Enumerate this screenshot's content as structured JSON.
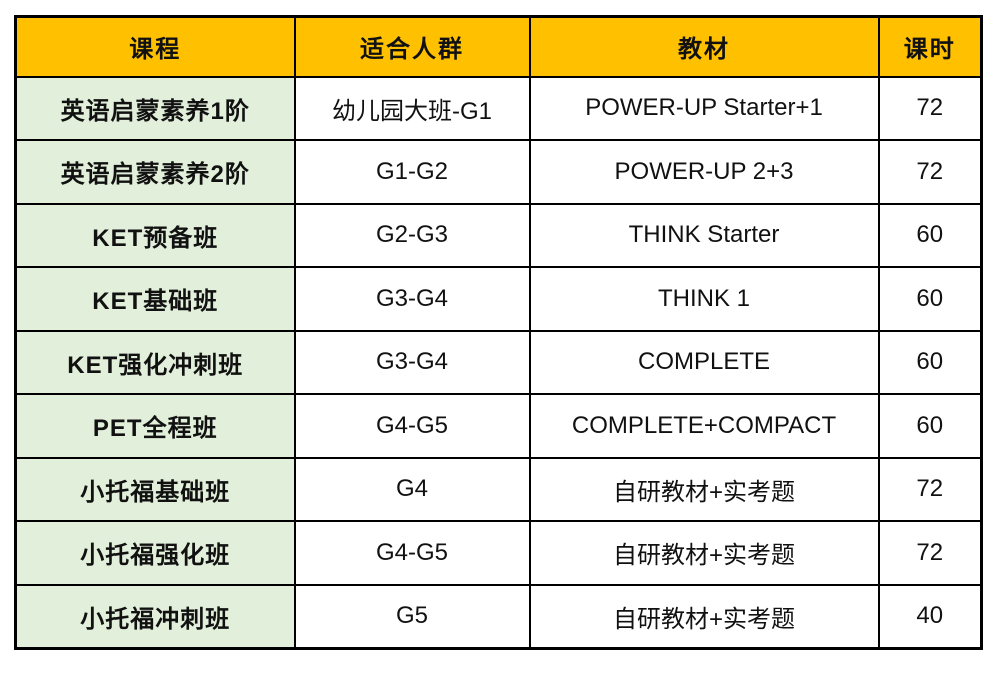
{
  "chart_data": {
    "type": "table",
    "title": "",
    "columns": [
      "课程",
      "适合人群",
      "教材",
      "课时"
    ],
    "rows": [
      [
        "英语启蒙素养1阶",
        "幼儿园大班-G1",
        "POWER-UP Starter+1",
        72
      ],
      [
        "英语启蒙素养2阶",
        "G1-G2",
        "POWER-UP 2+3",
        72
      ],
      [
        "KET预备班",
        "G2-G3",
        "THINK Starter",
        60
      ],
      [
        "KET基础班",
        "G3-G4",
        "THINK 1",
        60
      ],
      [
        "KET强化冲刺班",
        "G3-G4",
        "COMPLETE",
        60
      ],
      [
        "PET全程班",
        "G4-G5",
        "COMPLETE+COMPACT",
        60
      ],
      [
        "小托福基础班",
        "G4",
        "自研教材+实考题",
        72
      ],
      [
        "小托福强化班",
        "G4-G5",
        "自研教材+实考题",
        72
      ],
      [
        "小托福冲刺班",
        "G5",
        "自研教材+实考题",
        40
      ]
    ]
  },
  "table": {
    "headers": {
      "course": "课程",
      "audience": "适合人群",
      "textbook": "教材",
      "hours": "课时"
    },
    "rows": [
      {
        "course": "英语启蒙素养1阶",
        "audience": "幼儿园大班-G1",
        "textbook": "POWER-UP Starter+1",
        "hours": "72"
      },
      {
        "course": "英语启蒙素养2阶",
        "audience": "G1-G2",
        "textbook": "POWER-UP 2+3",
        "hours": "72"
      },
      {
        "course": "KET预备班",
        "audience": "G2-G3",
        "textbook": "THINK Starter",
        "hours": "60"
      },
      {
        "course": "KET基础班",
        "audience": "G3-G4",
        "textbook": "THINK 1",
        "hours": "60"
      },
      {
        "course": "KET强化冲刺班",
        "audience": "G3-G4",
        "textbook": "COMPLETE",
        "hours": "60"
      },
      {
        "course": "PET全程班",
        "audience": "G4-G5",
        "textbook": "COMPLETE+COMPACT",
        "hours": "60"
      },
      {
        "course": "小托福基础班",
        "audience": "G4",
        "textbook": "自研教材+实考题",
        "hours": "72"
      },
      {
        "course": "小托福强化班",
        "audience": "G4-G5",
        "textbook": "自研教材+实考题",
        "hours": "72"
      },
      {
        "course": "小托福冲刺班",
        "audience": "G5",
        "textbook": "自研教材+实考题",
        "hours": "40"
      }
    ],
    "colors": {
      "header_bg": "#FFC000",
      "course_col_bg": "#E2EFDA",
      "border": "#000000",
      "cell_bg": "#FFFFFF",
      "text": "#111111"
    }
  }
}
